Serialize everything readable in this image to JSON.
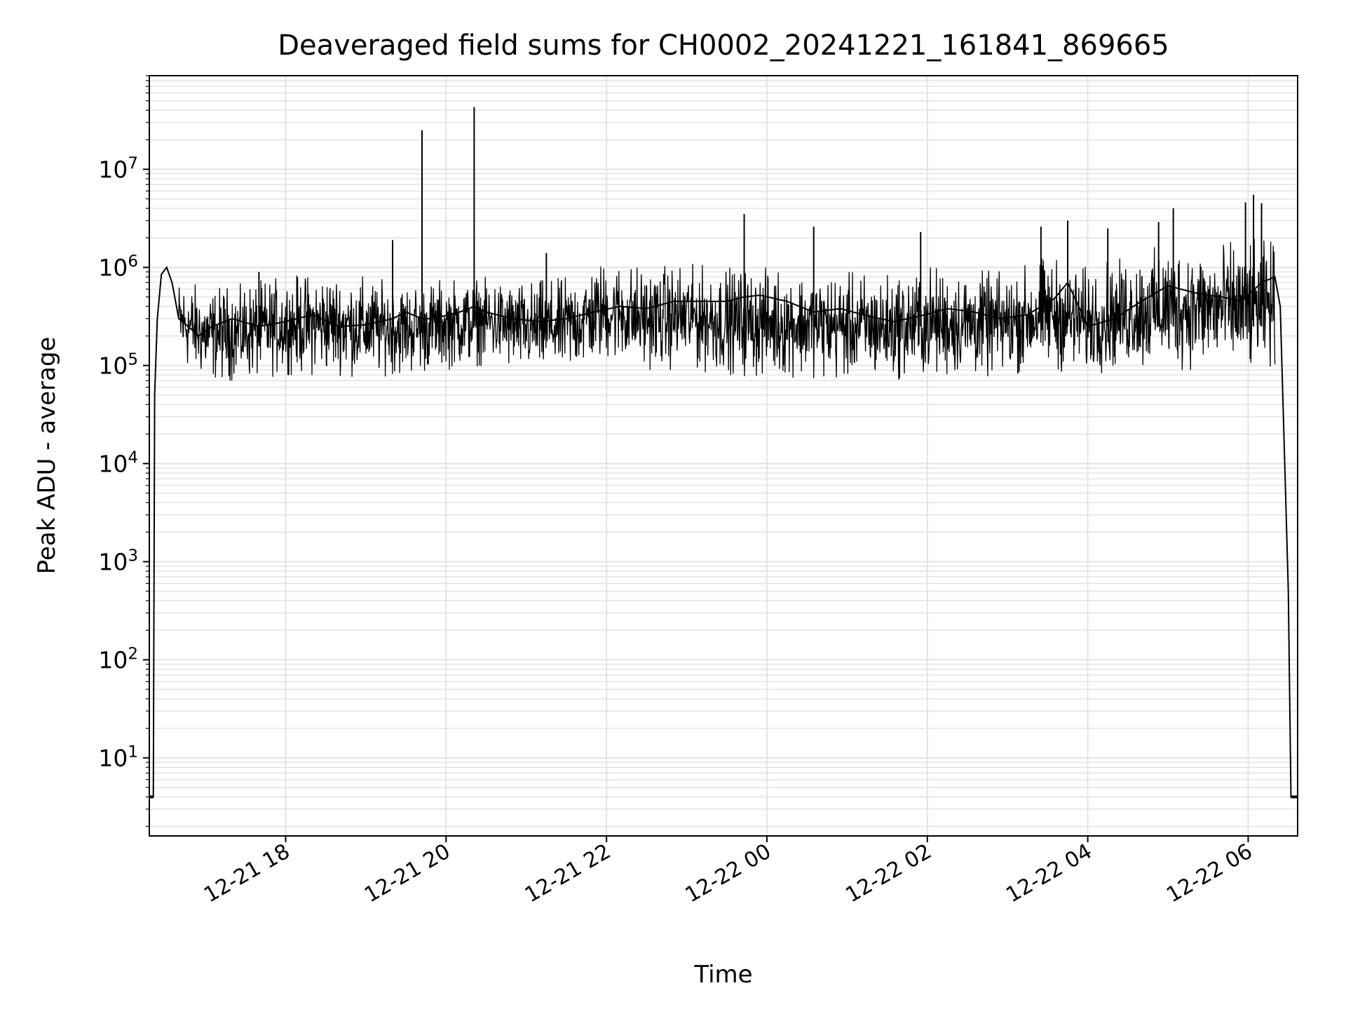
{
  "chart_data": {
    "type": "line",
    "title": "Deaveraged field sums for CH0002_20241221_161841_869665",
    "xlabel": "Time",
    "ylabel": "Peak ADU - average",
    "yscale": "log",
    "ylim": [
      1.6,
      90000000
    ],
    "xlim": [
      "2024-12-21 16:18",
      "2024-12-22 06:37"
    ],
    "grid": true,
    "line_color": "#000000",
    "grid_color": "#e3e3e3",
    "x_ticks": [
      {
        "at": "2024-12-21 18:00",
        "label": "12-21 18"
      },
      {
        "at": "2024-12-21 20:00",
        "label": "12-21 20"
      },
      {
        "at": "2024-12-21 22:00",
        "label": "12-21 22"
      },
      {
        "at": "2024-12-22 00:00",
        "label": "12-22 00"
      },
      {
        "at": "2024-12-22 02:00",
        "label": "12-22 02"
      },
      {
        "at": "2024-12-22 04:00",
        "label": "12-22 04"
      },
      {
        "at": "2024-12-22 06:00",
        "label": "12-22 06"
      }
    ],
    "y_ticks": [
      {
        "value": 10,
        "base": "10",
        "exp": "1"
      },
      {
        "value": 100,
        "base": "10",
        "exp": "2"
      },
      {
        "value": 1000,
        "base": "10",
        "exp": "3"
      },
      {
        "value": 10000,
        "base": "10",
        "exp": "4"
      },
      {
        "value": 100000,
        "base": "10",
        "exp": "5"
      },
      {
        "value": 1000000,
        "base": "10",
        "exp": "6"
      },
      {
        "value": 10000000,
        "base": "10",
        "exp": "7"
      }
    ],
    "series": [
      {
        "x": [
          "2024-12-21 16:18",
          "2024-12-21 16:21",
          "2024-12-21 16:22",
          "2024-12-21 16:24",
          "2024-12-21 16:27",
          "2024-12-21 16:31",
          "2024-12-21 16:35",
          "2024-12-21 16:40",
          "2024-12-21 16:47",
          "2024-12-21 16:55",
          "2024-12-21 17:05",
          "2024-12-21 17:20",
          "2024-12-21 17:40",
          "2024-12-21 18:00",
          "2024-12-21 18:20",
          "2024-12-21 18:40",
          "2024-12-21 19:00",
          "2024-12-21 19:20",
          "2024-12-21 19:30",
          "2024-12-21 19:42",
          "2024-12-21 19:50",
          "2024-12-21 20:10",
          "2024-12-21 20:21",
          "2024-12-21 20:30",
          "2024-12-21 20:50",
          "2024-12-21 21:10",
          "2024-12-21 21:30",
          "2024-12-21 21:50",
          "2024-12-21 22:10",
          "2024-12-21 22:30",
          "2024-12-21 22:50",
          "2024-12-21 23:10",
          "2024-12-21 23:30",
          "2024-12-21 23:43",
          "2024-12-21 23:55",
          "2024-12-22 00:15",
          "2024-12-22 00:35",
          "2024-12-22 00:55",
          "2024-12-22 01:15",
          "2024-12-22 01:35",
          "2024-12-22 01:55",
          "2024-12-22 02:15",
          "2024-12-22 02:35",
          "2024-12-22 02:55",
          "2024-12-22 03:15",
          "2024-12-22 03:35",
          "2024-12-22 03:45",
          "2024-12-22 04:00",
          "2024-12-22 04:20",
          "2024-12-22 04:40",
          "2024-12-22 05:00",
          "2024-12-22 05:20",
          "2024-12-22 05:40",
          "2024-12-22 05:55",
          "2024-12-22 06:10",
          "2024-12-22 06:20",
          "2024-12-22 06:24",
          "2024-12-22 06:28",
          "2024-12-22 06:30",
          "2024-12-22 06:32",
          "2024-12-22 06:37"
        ],
        "y": [
          4,
          4,
          50000,
          300000,
          850000,
          1000000,
          700000,
          300000,
          250000,
          200000,
          250000,
          300000,
          250000,
          280000,
          330000,
          250000,
          260000,
          300000,
          350000,
          300000,
          300000,
          350000,
          400000,
          350000,
          300000,
          280000,
          300000,
          350000,
          400000,
          380000,
          450000,
          450000,
          450000,
          500000,
          520000,
          450000,
          350000,
          380000,
          320000,
          280000,
          320000,
          380000,
          350000,
          300000,
          330000,
          480000,
          700000,
          250000,
          300000,
          450000,
          650000,
          550000,
          500000,
          450000,
          700000,
          800000,
          400000,
          5000,
          500,
          4,
          4
        ]
      }
    ],
    "spikes": [
      {
        "x": "2024-12-21 17:40",
        "y": 900000
      },
      {
        "x": "2024-12-21 19:20",
        "y": 1900000
      },
      {
        "x": "2024-12-21 19:42",
        "y": 25000000
      },
      {
        "x": "2024-12-21 20:21",
        "y": 43000000
      },
      {
        "x": "2024-12-21 21:15",
        "y": 1400000
      },
      {
        "x": "2024-12-21 23:43",
        "y": 3500000
      },
      {
        "x": "2024-12-22 00:35",
        "y": 2600000
      },
      {
        "x": "2024-12-22 01:55",
        "y": 2300000
      },
      {
        "x": "2024-12-22 03:25",
        "y": 2600000
      },
      {
        "x": "2024-12-22 03:45",
        "y": 3000000
      },
      {
        "x": "2024-12-22 04:15",
        "y": 2500000
      },
      {
        "x": "2024-12-22 04:53",
        "y": 2900000
      },
      {
        "x": "2024-12-22 05:04",
        "y": 4000000
      },
      {
        "x": "2024-12-22 05:58",
        "y": 4600000
      },
      {
        "x": "2024-12-22 06:04",
        "y": 5500000
      },
      {
        "x": "2024-12-22 06:10",
        "y": 4500000
      }
    ],
    "envelope": {
      "x": [
        "2024-12-21 16:40",
        "2024-12-21 17:00",
        "2024-12-21 17:30",
        "2024-12-21 18:00",
        "2024-12-21 18:30",
        "2024-12-21 19:00",
        "2024-12-21 19:30",
        "2024-12-21 20:00",
        "2024-12-21 20:30",
        "2024-12-21 21:00",
        "2024-12-21 21:30",
        "2024-12-21 22:00",
        "2024-12-21 22:30",
        "2024-12-21 23:00",
        "2024-12-21 23:30",
        "2024-12-22 00:00",
        "2024-12-22 00:30",
        "2024-12-22 01:00",
        "2024-12-22 01:30",
        "2024-12-22 02:00",
        "2024-12-22 02:30",
        "2024-12-22 03:00",
        "2024-12-22 03:30",
        "2024-12-22 04:00",
        "2024-12-22 04:30",
        "2024-12-22 05:00",
        "2024-12-22 05:30",
        "2024-12-22 06:00",
        "2024-12-22 06:20"
      ],
      "high": [
        800000,
        600000,
        700000,
        800000,
        900000,
        800000,
        700000,
        750000,
        800000,
        700000,
        800000,
        1200000,
        1000000,
        1100000,
        1000000,
        1000000,
        900000,
        900000,
        850000,
        1000000,
        950000,
        900000,
        1300000,
        1000000,
        1300000,
        1800000,
        1600000,
        2000000,
        1800000
      ],
      "low": [
        100000,
        70000,
        70000,
        80000,
        80000,
        75000,
        80000,
        90000,
        100000,
        80000,
        80000,
        110000,
        90000,
        90000,
        80000,
        75000,
        75000,
        70000,
        70000,
        75000,
        75000,
        80000,
        90000,
        80000,
        90000,
        90000,
        90000,
        80000,
        100000
      ]
    }
  }
}
